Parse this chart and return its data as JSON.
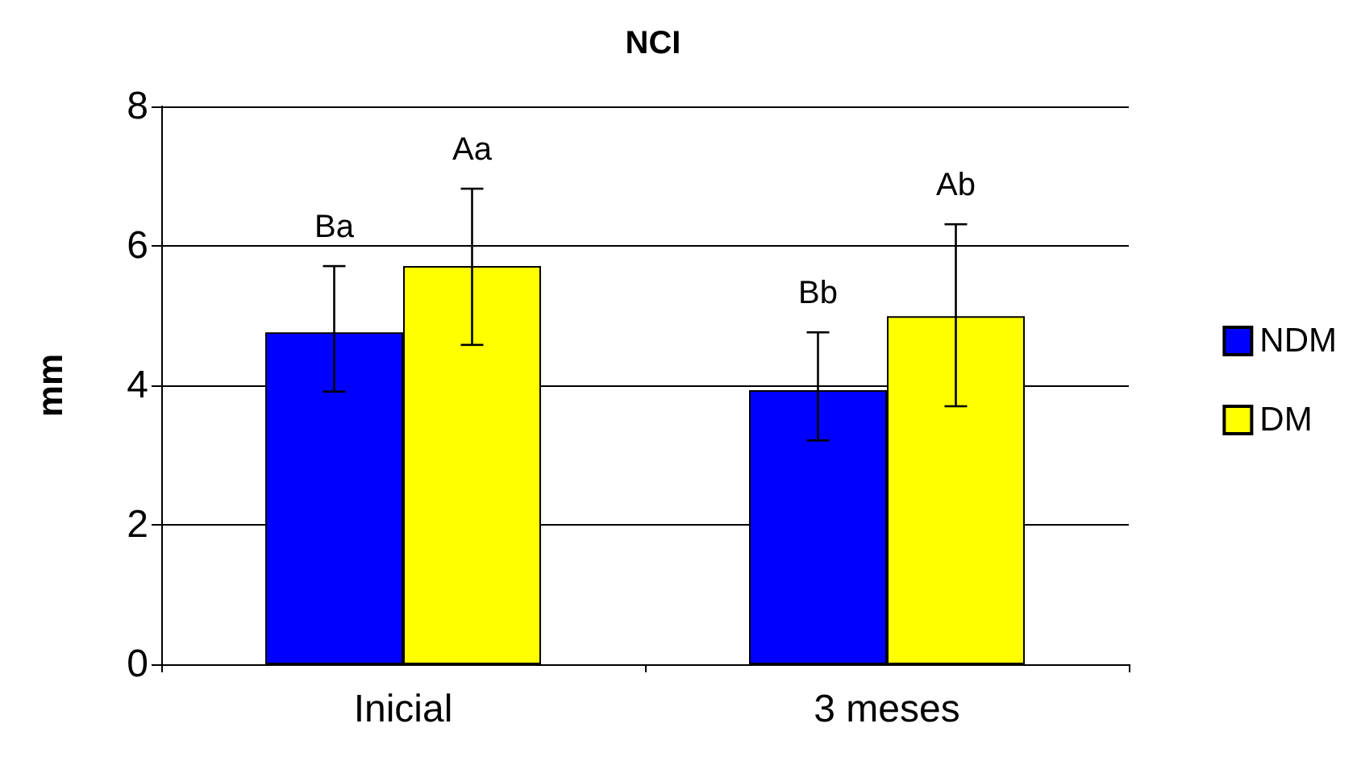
{
  "chart_data": {
    "type": "bar",
    "title": "NCI",
    "ylabel": "mm",
    "categories": [
      "Inicial",
      "3 meses"
    ],
    "series": [
      {
        "name": "NDM",
        "color": "#0000ff",
        "values": [
          4.76,
          3.93
        ],
        "errors": [
          [
            3.91,
            5.71
          ],
          [
            3.21,
            4.76
          ]
        ]
      },
      {
        "name": "DM",
        "color": "#ffff00",
        "values": [
          5.71,
          4.99
        ],
        "errors": [
          [
            4.58,
            6.82
          ],
          [
            3.7,
            6.31
          ]
        ]
      }
    ],
    "annotations": [
      "Ba",
      "Aa",
      "Bb",
      "Ab"
    ],
    "ylim": [
      0,
      8
    ],
    "yticks": [
      0,
      2,
      4,
      6,
      8
    ],
    "grid": "y",
    "legend": "right"
  }
}
